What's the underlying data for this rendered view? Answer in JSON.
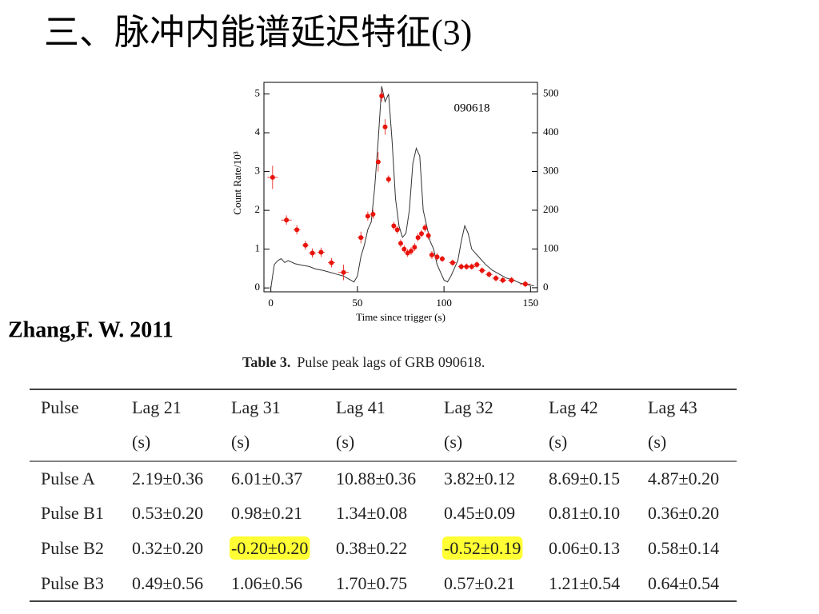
{
  "title": "三、脉冲内能谱延迟特征(3)",
  "citation": "Zhang,F. W. 2011",
  "chart_data": {
    "type": "lightcurve",
    "annotation": "090618",
    "xlabel": "Time since trigger (s)",
    "ylabel": "Count Rate/10³",
    "xlim": [
      -4,
      154
    ],
    "ylim": [
      -0.1,
      5.3
    ],
    "y2lim": [
      -10.5,
      530
    ],
    "xticks": [
      0,
      50,
      100,
      150
    ],
    "yticks": [
      0,
      1,
      2,
      3,
      4,
      5
    ],
    "y2ticks": [
      0,
      100,
      200,
      300,
      400,
      500
    ],
    "series": [
      {
        "type": "line",
        "axis": "y2",
        "color": "#333333",
        "x": [
          0,
          2,
          4,
          6,
          8,
          10,
          14,
          18,
          22,
          26,
          30,
          34,
          38,
          42,
          46,
          48,
          50,
          52,
          54,
          56,
          58,
          60,
          62,
          64,
          66,
          68,
          70,
          72,
          74,
          76,
          78,
          80,
          82,
          84,
          86,
          88,
          90,
          92,
          94,
          96,
          98,
          100,
          102,
          104,
          106,
          108,
          110,
          112,
          114,
          116,
          118,
          120,
          124,
          128,
          132,
          136,
          140,
          144,
          148,
          152
        ],
        "values": [
          0,
          60,
          70,
          75,
          65,
          70,
          62,
          58,
          55,
          48,
          45,
          40,
          35,
          30,
          20,
          15,
          30,
          80,
          110,
          150,
          170,
          260,
          380,
          520,
          480,
          500,
          380,
          230,
          160,
          130,
          140,
          200,
          320,
          360,
          340,
          200,
          160,
          120,
          100,
          60,
          40,
          20,
          15,
          30,
          50,
          70,
          120,
          160,
          140,
          100,
          90,
          80,
          60,
          45,
          35,
          25,
          20,
          12,
          8,
          5
        ]
      },
      {
        "type": "scatter",
        "axis": "y",
        "color": "#e8140c",
        "x": [
          1,
          9,
          15,
          20,
          24,
          29,
          35,
          42,
          52,
          56,
          59,
          62,
          64,
          66,
          68,
          71,
          73,
          75,
          77,
          79,
          81,
          83,
          85,
          87,
          89,
          91,
          93,
          96,
          99,
          105,
          110,
          113,
          116,
          119,
          122,
          126,
          130,
          134,
          139,
          147
        ],
        "values": [
          2.85,
          1.75,
          1.5,
          1.1,
          0.9,
          0.92,
          0.65,
          0.4,
          1.3,
          1.85,
          1.9,
          3.25,
          4.95,
          4.15,
          2.8,
          1.6,
          1.5,
          1.15,
          1.0,
          0.9,
          0.95,
          1.05,
          1.3,
          1.4,
          1.55,
          1.35,
          0.85,
          0.8,
          0.75,
          0.65,
          0.55,
          0.55,
          0.55,
          0.6,
          0.45,
          0.35,
          0.25,
          0.2,
          0.2,
          0.1
        ],
        "xerr": [
          3,
          3,
          2,
          2,
          2,
          2,
          2,
          3,
          2,
          1.5,
          1.5,
          1,
          1,
          1,
          1,
          1,
          1,
          1,
          1,
          1,
          1,
          1,
          1,
          1,
          1,
          1,
          1.5,
          1.5,
          1.5,
          2,
          2,
          2,
          2,
          2,
          2,
          2,
          2,
          2,
          2,
          3
        ],
        "yerr": [
          0.3,
          0.12,
          0.12,
          0.12,
          0.12,
          0.12,
          0.12,
          0.2,
          0.15,
          0.12,
          0.12,
          0.25,
          0.15,
          0.2,
          0.1,
          0.1,
          0.1,
          0.1,
          0.1,
          0.1,
          0.1,
          0.1,
          0.1,
          0.1,
          0.1,
          0.1,
          0.1,
          0.1,
          0.08,
          0.08,
          0.08,
          0.08,
          0.08,
          0.08,
          0.08,
          0.08,
          0.08,
          0.08,
          0.08,
          0.08
        ]
      }
    ]
  },
  "table": {
    "caption_label": "Table 3.",
    "caption": "Pulse peak lags of GRB 090618.",
    "columns": [
      {
        "name": "Pulse"
      },
      {
        "name": "Lag 21",
        "unit": "(s)"
      },
      {
        "name": "Lag 31",
        "unit": "(s)"
      },
      {
        "name": "Lag 41",
        "unit": "(s)"
      },
      {
        "name": "Lag 32",
        "unit": "(s)"
      },
      {
        "name": "Lag 42",
        "unit": "(s)"
      },
      {
        "name": "Lag 43",
        "unit": "(s)"
      }
    ],
    "rows": [
      [
        "Pulse A",
        "2.19±0.36",
        "6.01±0.37",
        "10.88±0.36",
        "3.82±0.12",
        "8.69±0.15",
        "4.87±0.20"
      ],
      [
        "Pulse B1",
        "0.53±0.20",
        "0.98±0.21",
        "1.34±0.08",
        "0.45±0.09",
        "0.81±0.10",
        "0.36±0.20"
      ],
      [
        "Pulse B2",
        "0.32±0.20",
        "-0.20±0.20",
        "0.38±0.22",
        "-0.52±0.19",
        "0.06±0.13",
        "0.58±0.14"
      ],
      [
        "Pulse B3",
        "0.49±0.56",
        "1.06±0.56",
        "1.70±0.75",
        "0.57±0.21",
        "1.21±0.54",
        "0.64±0.54"
      ]
    ],
    "highlight_color": "#ffff33",
    "highlighted": [
      {
        "row": 2,
        "col": 2
      },
      {
        "row": 2,
        "col": 4
      }
    ]
  }
}
